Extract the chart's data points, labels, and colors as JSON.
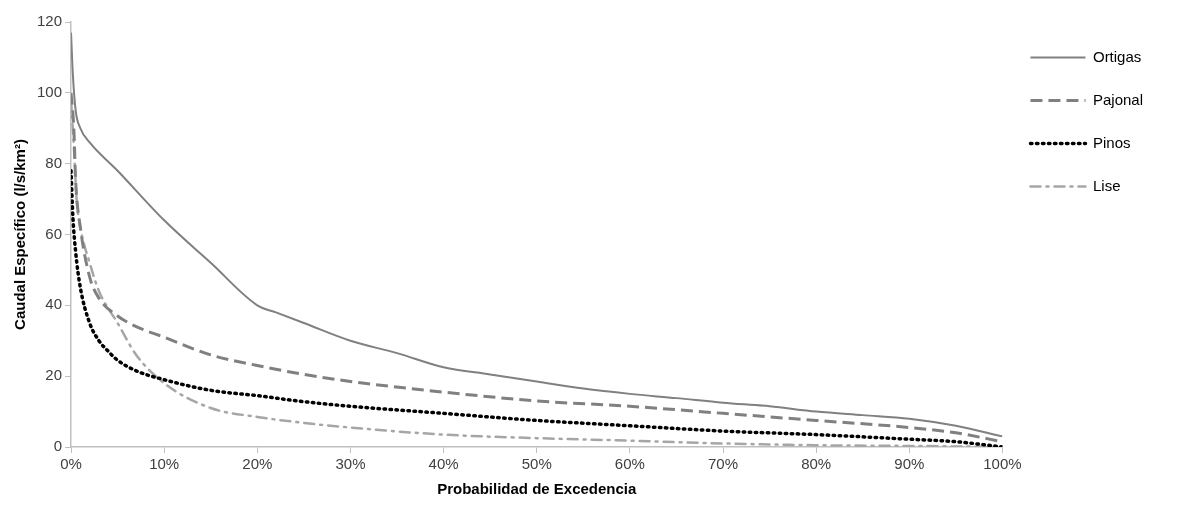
{
  "chart_data": {
    "type": "line",
    "xlabel": "Probabilidad de Excedencia",
    "ylabel": "Caudal Específico (l/s/km²)",
    "xlim": [
      0,
      100
    ],
    "xticks": [
      {
        "value": 0,
        "label": "0%"
      },
      {
        "value": 10,
        "label": "10%"
      },
      {
        "value": 20,
        "label": "20%"
      },
      {
        "value": 30,
        "label": "30%"
      },
      {
        "value": 40,
        "label": "40%"
      },
      {
        "value": 50,
        "label": "50%"
      },
      {
        "value": 60,
        "label": "60%"
      },
      {
        "value": 70,
        "label": "70%"
      },
      {
        "value": 80,
        "label": "80%"
      },
      {
        "value": 90,
        "label": "90%"
      },
      {
        "value": 100,
        "label": "100%"
      }
    ],
    "ylim": [
      0,
      120
    ],
    "yticks": [
      0,
      20,
      40,
      60,
      80,
      100,
      120
    ],
    "grid": false,
    "legend": "top right",
    "marker": "none",
    "series": [
      {
        "name": "Ortigas",
        "color": "#808080",
        "line_style": "solid",
        "x": [
          0,
          0.2,
          0.5,
          1,
          2,
          5,
          10,
          15,
          20,
          22,
          25,
          30,
          35,
          40,
          45,
          50,
          55,
          60,
          65,
          70,
          75,
          80,
          85,
          90,
          95,
          100
        ],
        "values": [
          117,
          105,
          95,
          90,
          86,
          78,
          64,
          52,
          40,
          38,
          35,
          30,
          26.5,
          22.5,
          20.5,
          18.5,
          16.5,
          15,
          13.8,
          12.5,
          11.5,
          10,
          9,
          8,
          6,
          3
        ]
      },
      {
        "name": "Pajonal",
        "color": "#808080",
        "line_style": "dashed",
        "x": [
          0,
          0.3,
          0.5,
          1,
          2,
          3,
          5,
          7,
          10,
          15,
          20,
          25,
          30,
          40,
          50,
          60,
          70,
          80,
          90,
          95,
          100
        ],
        "values": [
          100,
          90,
          75,
          62,
          48,
          42,
          37,
          34,
          31,
          26,
          23,
          20.5,
          18.5,
          15.5,
          13,
          11.5,
          9.5,
          7.5,
          5.5,
          4,
          1.5
        ]
      },
      {
        "name": "Pinos",
        "color": "#000000",
        "line_style": "dotted",
        "x": [
          0,
          0.2,
          0.5,
          1,
          2,
          3,
          4,
          5,
          7,
          10,
          15,
          20,
          25,
          30,
          40,
          50,
          60,
          70,
          80,
          90,
          95,
          100
        ],
        "values": [
          78,
          65,
          55,
          45,
          35,
          30,
          27,
          24.5,
          21.5,
          19,
          16,
          14.5,
          12.8,
          11.5,
          9.5,
          7.5,
          6,
          4.5,
          3.5,
          2.2,
          1.5,
          0
        ]
      },
      {
        "name": "Lise",
        "color": "#a6a6a6",
        "line_style": "dashdot",
        "x": [
          0,
          0.3,
          0.6,
          1,
          2,
          3,
          5,
          7,
          10,
          15,
          20,
          25,
          30,
          40,
          50,
          60,
          70,
          80,
          90,
          100
        ],
        "values": [
          98,
          85,
          70,
          62,
          52,
          44,
          35,
          26,
          18,
          11,
          8.5,
          6.8,
          5.5,
          3.5,
          2.5,
          1.8,
          1,
          0.5,
          0.3,
          0
        ]
      }
    ]
  }
}
